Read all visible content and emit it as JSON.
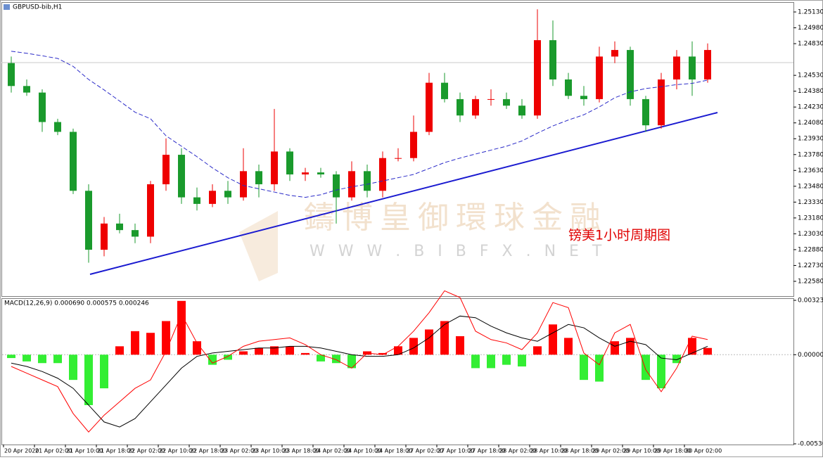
{
  "chart_data": [
    {
      "type": "candlestick",
      "title": "GBPUSD-bib,H1",
      "categories": [
        "20 Apr 2020",
        null,
        "21 Apr 02:00",
        null,
        "21 Apr 10:00",
        null,
        "21 Apr 18:00",
        null,
        "22 Apr 02:00",
        null,
        "22 Apr 10:00",
        null,
        "22 Apr 18:00",
        null,
        "23 Apr 02:00",
        null,
        "23 Apr 10:00",
        null,
        "23 Apr 18:00",
        null,
        "24 Apr 02:00",
        null,
        "24 Apr 10:00",
        null,
        "24 Apr 18:00",
        null,
        "27 Apr 02:00",
        null,
        "27 Apr 10:00",
        null,
        "27 Apr 18:00",
        null,
        "28 Apr 02:00",
        null,
        "28 Apr 10:00",
        null,
        "28 Apr 18:00",
        null,
        "29 Apr 02:00",
        null,
        "29 Apr 10:00",
        null,
        "29 Apr 18:00",
        null,
        "30 Apr 02:00",
        null
      ],
      "open": [
        1.24646,
        1.24429,
        1.24367,
        1.24088,
        1.23995,
        1.23437,
        1.22879,
        1.23127,
        1.23065,
        1.23003,
        1.23499,
        1.23778,
        1.23375,
        1.23313,
        1.23437,
        1.23375,
        1.23623,
        1.23499,
        1.23809,
        1.23592,
        1.23611,
        1.23592,
        1.23375,
        1.23623,
        1.23437,
        1.23747,
        1.23747,
        1.23995,
        1.2446,
        1.24305,
        1.2415,
        1.24305,
        1.24305,
        1.24243,
        1.2415,
        1.24863,
        1.24491,
        1.24336,
        1.24305,
        1.24708,
        1.2477,
        1.24305,
        1.24057,
        1.24491,
        1.24708,
        1.24491
      ],
      "high": [
        1.24708,
        1.24491,
        1.24398,
        1.24119,
        1.24026,
        1.23499,
        1.23189,
        1.2322,
        1.23127,
        1.2353,
        1.23933,
        1.2384,
        1.23468,
        1.23499,
        1.2353,
        1.2384,
        1.23685,
        1.24212,
        1.2384,
        1.23654,
        1.23654,
        1.23623,
        1.23716,
        1.23685,
        1.23809,
        1.2384,
        1.2415,
        1.24553,
        1.24553,
        1.24367,
        1.24336,
        1.24398,
        1.24367,
        1.24305,
        1.25155,
        1.25049,
        1.24553,
        1.24429,
        1.24801,
        1.24851,
        1.24801,
        1.24336,
        1.24553,
        1.2477,
        1.24851,
        1.24832
      ],
      "low": [
        1.24367,
        1.24336,
        1.23995,
        1.23964,
        1.23406,
        1.22756,
        1.22817,
        1.23034,
        1.22941,
        1.22941,
        1.23437,
        1.23313,
        1.23251,
        1.23282,
        1.23313,
        1.23344,
        1.23375,
        1.23437,
        1.2353,
        1.2353,
        1.23561,
        1.23127,
        1.23344,
        1.23375,
        1.23375,
        1.23716,
        1.23716,
        1.23964,
        1.24274,
        1.24088,
        1.24119,
        1.24243,
        1.24212,
        1.24119,
        1.24119,
        1.24429,
        1.24305,
        1.24243,
        1.24274,
        1.24646,
        1.24243,
        1.23995,
        1.24026,
        1.24398,
        1.24336,
        1.2446
      ],
      "close": [
        1.24429,
        1.24367,
        1.24088,
        1.23995,
        1.23437,
        1.22879,
        1.23127,
        1.23065,
        1.23003,
        1.23499,
        1.23778,
        1.23375,
        1.23313,
        1.23437,
        1.23375,
        1.23623,
        1.23499,
        1.23809,
        1.23592,
        1.23611,
        1.23592,
        1.23375,
        1.23623,
        1.23437,
        1.23747,
        1.23747,
        1.23995,
        1.2446,
        1.24305,
        1.2415,
        1.24305,
        1.24305,
        1.24243,
        1.2415,
        1.24863,
        1.24491,
        1.24336,
        1.24305,
        1.24708,
        1.2477,
        1.24305,
        1.24057,
        1.24491,
        1.24708,
        1.24491,
        1.2477
      ],
      "up_color": "#ee0000",
      "down_color": "#1a9a2c",
      "ma": {
        "color": "#2a2ac8",
        "values": [
          1.24758,
          1.24739,
          1.24715,
          1.2469,
          1.24615,
          1.24491,
          1.24392,
          1.24287,
          1.24181,
          1.24119,
          1.23958,
          1.23859,
          1.2376,
          1.23654,
          1.23561,
          1.23487,
          1.23456,
          1.23425,
          1.23394,
          1.23375,
          1.234,
          1.23444,
          1.23475,
          1.23499,
          1.2353,
          1.23561,
          1.23592,
          1.23648,
          1.23704,
          1.23747,
          1.23785,
          1.23822,
          1.23859,
          1.23909,
          1.23983,
          1.24051,
          1.24107,
          1.24157,
          1.24231,
          1.24318,
          1.24374,
          1.24405,
          1.24423,
          1.24442,
          1.24454,
          1.24485
        ]
      },
      "ylim": [
        1.2244,
        1.2521
      ],
      "yticks": [
        {
          "value": 1.2513,
          "label": "1.25130"
        },
        {
          "value": 1.2498,
          "label": "1.24980"
        },
        {
          "value": 1.2483,
          "label": "1.24830"
        },
        {
          "value": 1.2453,
          "label": "1.24530"
        },
        {
          "value": 1.2438,
          "label": "1.24380"
        },
        {
          "value": 1.2423,
          "label": "1.24230"
        },
        {
          "value": 1.2408,
          "label": "1.24080"
        },
        {
          "value": 1.2393,
          "label": "1.23930"
        },
        {
          "value": 1.2378,
          "label": "1.23780"
        },
        {
          "value": 1.2363,
          "label": "1.23630"
        },
        {
          "value": 1.2348,
          "label": "1.23480"
        },
        {
          "value": 1.2333,
          "label": "1.23330"
        },
        {
          "value": 1.2318,
          "label": "1.23180"
        },
        {
          "value": 1.2303,
          "label": "1.23030"
        },
        {
          "value": 1.2288,
          "label": "1.22880"
        },
        {
          "value": 1.2273,
          "label": "1.22730"
        },
        {
          "value": 1.2258,
          "label": "1.22580"
        }
      ],
      "grid": false,
      "watermark": "鑄博皇御環球金融",
      "watermark_url": "W W W . B I B F X . N E T",
      "annotation": "镑美1小时周期图"
    },
    {
      "type": "macd",
      "title": "MACD(12,26,9) 0.000690 0.000575 0.000246",
      "histogram": [
        -0.0002,
        -0.0004,
        -0.0005,
        -0.0005,
        -0.0015,
        -0.003,
        -0.002,
        0.0005,
        0.0014,
        0.0013,
        0.002,
        0.0032,
        0.0008,
        -0.0006,
        -0.0003,
        0.0002,
        0.0004,
        0.0005,
        0.0005,
        0.0001,
        -0.0004,
        -0.0005,
        -0.0008,
        0.0002,
        0.0001,
        0.0005,
        0.001,
        0.0015,
        0.002,
        0.0011,
        -0.0008,
        -0.0008,
        -0.0006,
        -0.0007,
        0.0005,
        0.0018,
        0.001,
        -0.0015,
        -0.0016,
        0.0008,
        0.001,
        -0.0015,
        -0.002,
        -0.0005,
        0.001,
        0.0004
      ],
      "positive_color": "#ff0000",
      "negative_color": "#33ee33",
      "macd": {
        "color": "#ff0000",
        "values": [
          -0.0007,
          -0.0011,
          -0.0015,
          -0.0019,
          -0.0035,
          -0.0046,
          -0.0036,
          -0.0028,
          -0.002,
          -0.0015,
          0.0002,
          0.0024,
          0.0007,
          -0.0005,
          -0.0001,
          0.0005,
          0.0008,
          0.0009,
          0.001,
          0.0006,
          0.0,
          -0.0003,
          -0.0008,
          0.0001,
          0.0,
          0.0005,
          0.0014,
          0.0025,
          0.0038,
          0.0034,
          0.0014,
          0.0009,
          0.0007,
          0.0003,
          0.0013,
          0.0031,
          0.0028,
          0.0001,
          -0.0006,
          0.0013,
          0.0018,
          -0.0009,
          -0.0022,
          -0.0008,
          0.0011,
          0.0009
        ]
      },
      "signal": {
        "color": "#000000",
        "values": [
          -0.0005,
          -0.0007,
          -0.001,
          -0.0014,
          -0.002,
          -0.003,
          -0.004,
          -0.0043,
          -0.0038,
          -0.0028,
          -0.0018,
          -0.0008,
          -0.0001,
          0.0001,
          0.0002,
          0.0003,
          0.0004,
          0.0004,
          0.0005,
          0.0005,
          0.0004,
          0.0002,
          0.0,
          -0.0001,
          -0.0001,
          0.0,
          0.0004,
          0.001,
          0.0018,
          0.0023,
          0.0022,
          0.0017,
          0.0013,
          0.001,
          0.0008,
          0.0013,
          0.0018,
          0.0016,
          0.001,
          0.0005,
          0.0008,
          0.0006,
          -0.0002,
          -0.0003,
          0.0001,
          0.0005
        ]
      },
      "ylim": [
        -0.005302,
        0.003234
      ],
      "yticks": [
        {
          "value": 0.003234,
          "label": "0.003234"
        },
        {
          "value": 0,
          "label": "0.000000"
        },
        {
          "value": -0.005302,
          "label": "-0.005302"
        }
      ]
    }
  ]
}
